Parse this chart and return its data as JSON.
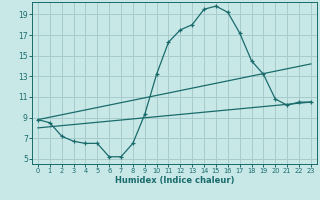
{
  "xlabel": "Humidex (Indice chaleur)",
  "bg_color": "#c8e8e8",
  "line_color": "#1a6b6b",
  "grid_color": "#a8cccc",
  "xlim": [
    -0.5,
    23.5
  ],
  "ylim": [
    4.5,
    20.2
  ],
  "xticks": [
    0,
    1,
    2,
    3,
    4,
    5,
    6,
    7,
    8,
    9,
    10,
    11,
    12,
    13,
    14,
    15,
    16,
    17,
    18,
    19,
    20,
    21,
    22,
    23
  ],
  "yticks": [
    5,
    7,
    9,
    11,
    13,
    15,
    17,
    19
  ],
  "curve1_x": [
    0,
    1,
    2,
    3,
    4,
    5,
    6,
    7,
    8,
    9,
    10,
    11,
    12,
    13,
    14,
    15,
    16,
    17,
    18,
    19,
    20,
    21,
    22,
    23
  ],
  "curve1_y": [
    8.8,
    8.5,
    7.2,
    6.7,
    6.5,
    6.5,
    5.2,
    5.2,
    6.5,
    9.3,
    13.2,
    16.3,
    17.5,
    18.0,
    19.5,
    19.8,
    19.2,
    17.2,
    14.5,
    13.2,
    10.8,
    10.2,
    10.5,
    10.5
  ],
  "curve2_x": [
    0,
    23
  ],
  "curve2_y": [
    8.8,
    14.2
  ],
  "curve3_x": [
    0,
    23
  ],
  "curve3_y": [
    8.0,
    10.5
  ]
}
